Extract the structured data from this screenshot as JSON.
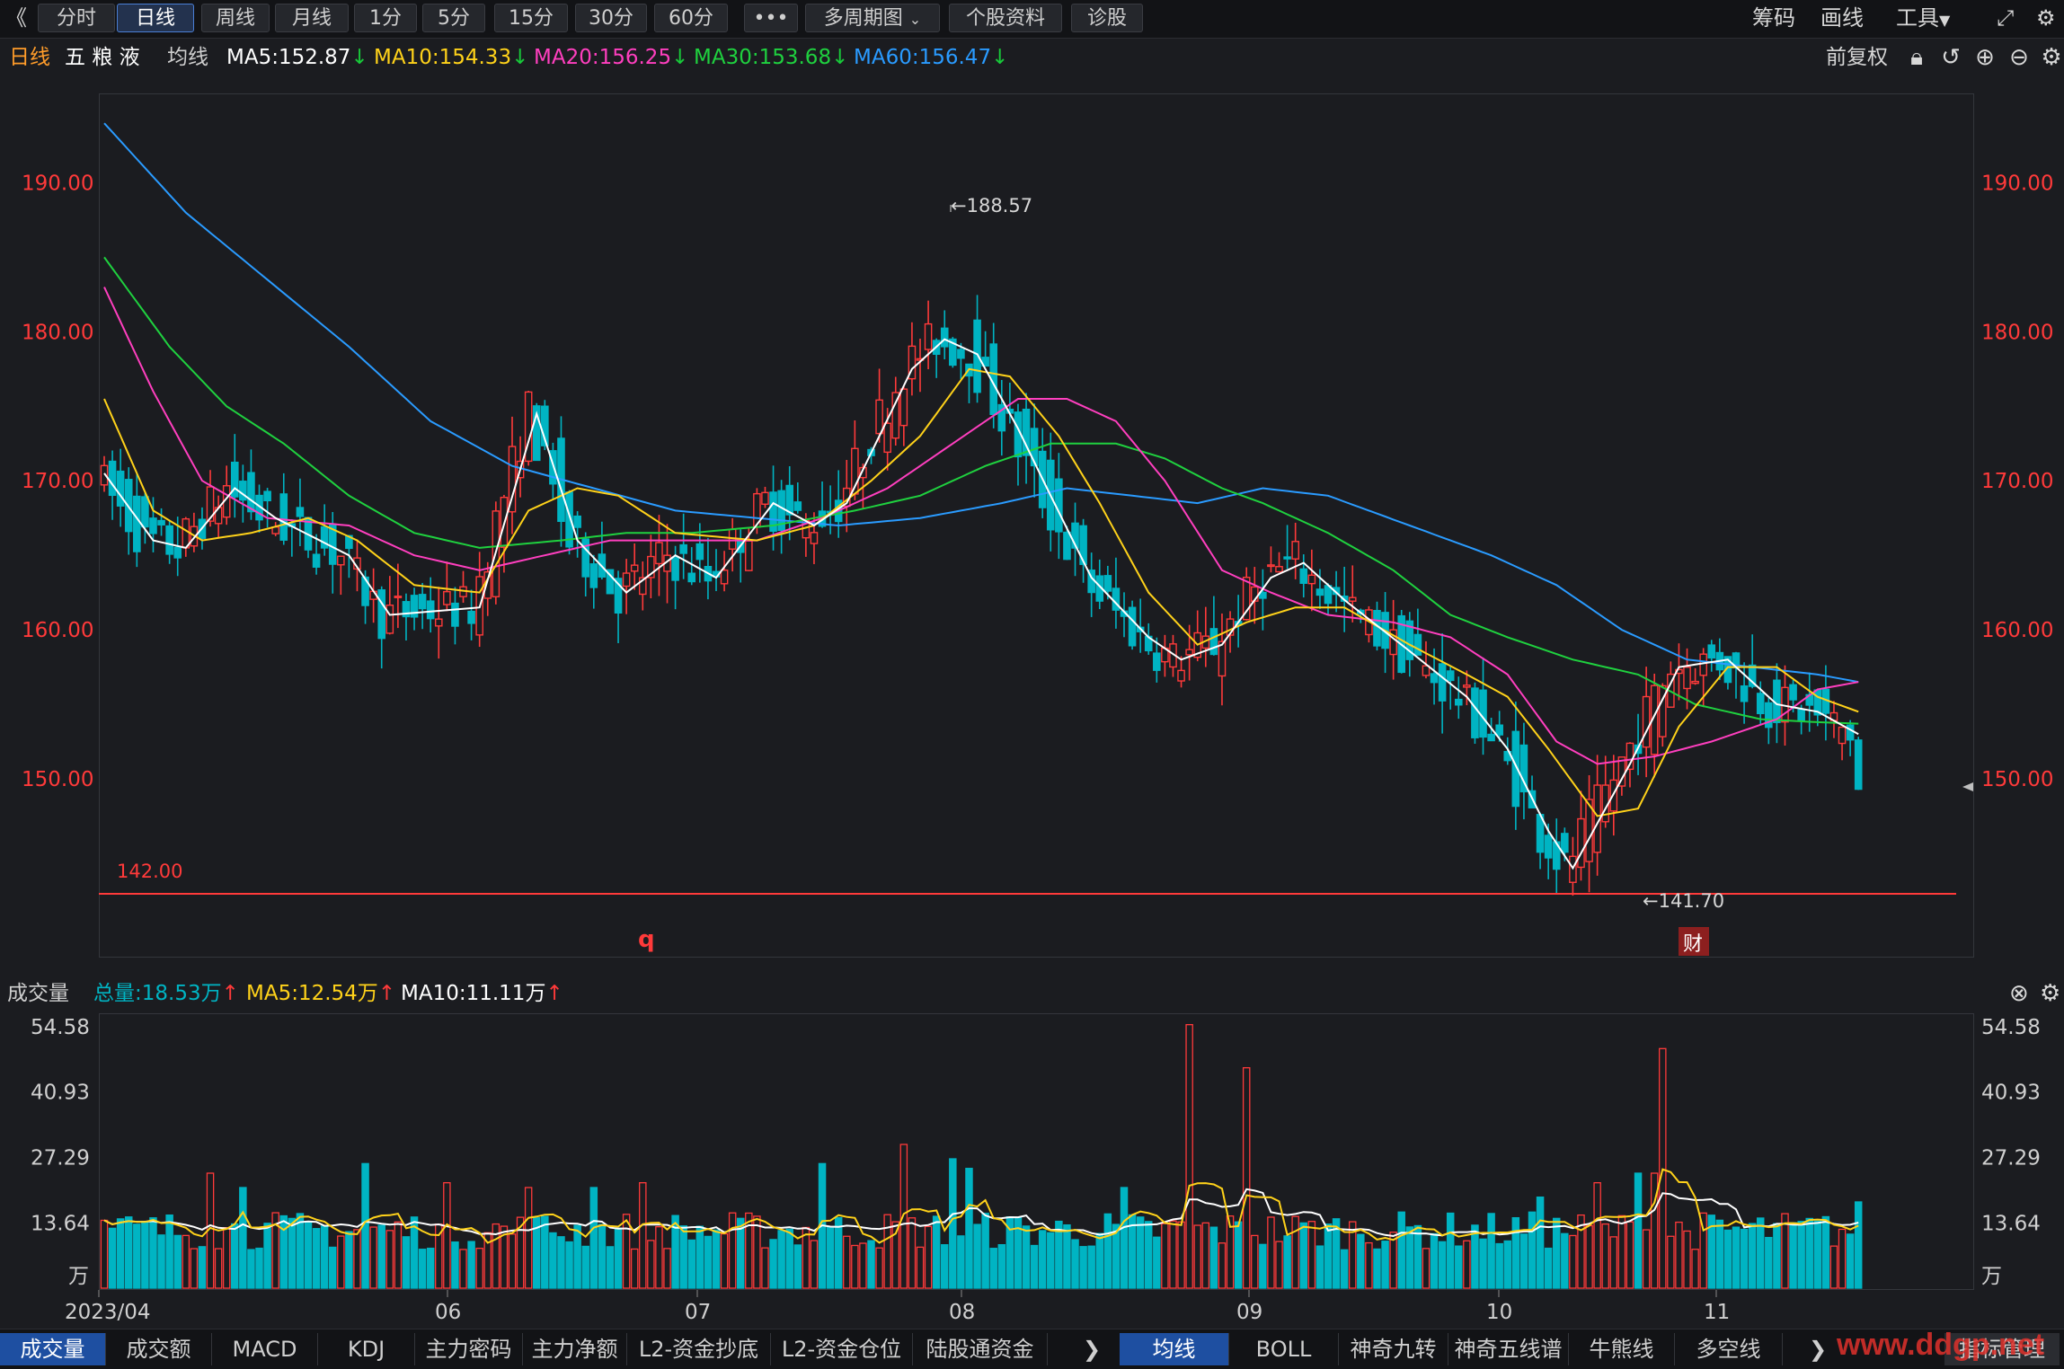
{
  "toolbar": {
    "back": "《",
    "periods": [
      "分时",
      "日线",
      "周线",
      "月线",
      "1分",
      "5分",
      "15分",
      "30分",
      "60分"
    ],
    "active_period": "日线",
    "more": "•••",
    "multi_period": "多周期图",
    "stock_info": "个股资料",
    "diagnose": "诊股",
    "chips": "筹码",
    "draw": "画线",
    "tools": "工具"
  },
  "info": {
    "period": "日线",
    "stock_name": "五 粮 液",
    "ma_label": "均线",
    "ma5": "MA5:152.87",
    "ma10": "MA10:154.33",
    "ma20": "MA20:156.25",
    "ma30": "MA30:153.68",
    "ma60": "MA60:156.47",
    "adjust": "前复权"
  },
  "colors": {
    "up": "#ff3a3a",
    "down": "#00b4c3",
    "ma5": "#ffffff",
    "ma10": "#ffd21a",
    "ma20": "#ff3fbf",
    "ma30": "#1fd13f",
    "ma60": "#2a9bff"
  },
  "main_chart": {
    "y_ticks": [
      "190.00",
      "180.00",
      "170.00",
      "160.00",
      "150.00"
    ],
    "high_label": "←188.57",
    "low_label": "←141.70",
    "support_label": "142.00",
    "marker_q": "q",
    "marker_cai": "财"
  },
  "volume": {
    "title": "成交量",
    "total": "总量:18.53万",
    "ma5": "MA5:12.54万",
    "ma10": "MA10:11.11万",
    "y_ticks": [
      "54.58",
      "40.93",
      "27.29",
      "13.64"
    ],
    "unit": "万"
  },
  "x_axis": [
    "2023/04",
    "06",
    "07",
    "08",
    "09",
    "10",
    "11"
  ],
  "bottom_tabs_left": [
    "成交量",
    "成交额",
    "MACD",
    "KDJ",
    "主力密码",
    "主力净额",
    "L2-资金抄底",
    "L2-资金仓位",
    "陆股通资金"
  ],
  "bottom_tabs_right": [
    "均线",
    "BOLL",
    "神奇九转",
    "神奇五线谱",
    "牛熊线",
    "多空线"
  ],
  "bottom_tab_last": "指标管理",
  "watermark": "www.ddgp.net",
  "chart_data": {
    "type": "candlestick",
    "y_range": [
      138,
      196
    ],
    "vol_range": [
      0,
      57
    ],
    "ma_keypoints": {
      "ma5": [
        [
          0,
          170.5
        ],
        [
          6,
          166
        ],
        [
          10,
          165.5
        ],
        [
          16,
          169.5
        ],
        [
          21,
          167.5
        ],
        [
          30,
          165
        ],
        [
          35,
          161
        ],
        [
          46,
          161.5
        ],
        [
          53,
          174.5
        ],
        [
          58,
          166
        ],
        [
          64,
          162.5
        ],
        [
          70,
          165
        ],
        [
          75,
          163.5
        ],
        [
          82,
          168.5
        ],
        [
          87,
          167
        ],
        [
          91,
          168.5
        ],
        [
          99,
          177.5
        ],
        [
          103,
          179.5
        ],
        [
          107,
          178.5
        ],
        [
          112,
          173.5
        ],
        [
          116,
          169
        ],
        [
          121,
          163.5
        ],
        [
          128,
          159.5
        ],
        [
          132,
          158
        ],
        [
          137,
          159
        ],
        [
          143,
          163.5
        ],
        [
          147,
          164.5
        ],
        [
          152,
          162
        ],
        [
          159,
          159
        ],
        [
          167,
          155.5
        ],
        [
          172,
          152
        ],
        [
          177,
          146.5
        ],
        [
          180,
          144
        ],
        [
          187,
          151
        ],
        [
          193,
          157.5
        ],
        [
          199,
          158
        ],
        [
          205,
          155
        ],
        [
          210,
          154.5
        ],
        [
          215,
          153
        ]
      ],
      "ma10": [
        [
          0,
          175.5
        ],
        [
          6,
          168
        ],
        [
          12,
          166
        ],
        [
          18,
          166.5
        ],
        [
          25,
          167.5
        ],
        [
          31,
          166
        ],
        [
          38,
          163
        ],
        [
          46,
          162.5
        ],
        [
          52,
          168
        ],
        [
          58,
          169.5
        ],
        [
          63,
          169
        ],
        [
          70,
          166.5
        ],
        [
          80,
          166
        ],
        [
          87,
          167
        ],
        [
          94,
          170
        ],
        [
          100,
          173
        ],
        [
          106,
          177.5
        ],
        [
          111,
          177
        ],
        [
          117,
          173
        ],
        [
          122,
          168.5
        ],
        [
          128,
          162.5
        ],
        [
          134,
          159
        ],
        [
          140,
          160.5
        ],
        [
          146,
          161.5
        ],
        [
          152,
          161.5
        ],
        [
          160,
          159
        ],
        [
          167,
          157
        ],
        [
          172,
          155.5
        ],
        [
          177,
          152
        ],
        [
          183,
          147.5
        ],
        [
          188,
          148
        ],
        [
          193,
          153.5
        ],
        [
          199,
          157.5
        ],
        [
          205,
          157.5
        ],
        [
          210,
          155.5
        ],
        [
          215,
          154.5
        ]
      ],
      "ma20": [
        [
          0,
          183
        ],
        [
          6,
          176
        ],
        [
          12,
          170
        ],
        [
          20,
          167.5
        ],
        [
          30,
          167
        ],
        [
          38,
          165
        ],
        [
          46,
          164
        ],
        [
          54,
          165
        ],
        [
          62,
          166
        ],
        [
          70,
          166
        ],
        [
          80,
          166
        ],
        [
          88,
          167.5
        ],
        [
          96,
          169.5
        ],
        [
          104,
          172.5
        ],
        [
          112,
          175.5
        ],
        [
          118,
          175.5
        ],
        [
          124,
          174
        ],
        [
          130,
          170
        ],
        [
          137,
          164
        ],
        [
          143,
          162.5
        ],
        [
          150,
          161
        ],
        [
          158,
          160.5
        ],
        [
          165,
          159.5
        ],
        [
          172,
          157
        ],
        [
          178,
          152.5
        ],
        [
          183,
          151
        ],
        [
          190,
          151.5
        ],
        [
          197,
          152.5
        ],
        [
          205,
          154
        ],
        [
          210,
          156
        ],
        [
          215,
          156.5
        ]
      ],
      "ma30": [
        [
          0,
          185
        ],
        [
          8,
          179
        ],
        [
          15,
          175
        ],
        [
          22,
          172.5
        ],
        [
          30,
          169
        ],
        [
          38,
          166.5
        ],
        [
          46,
          165.5
        ],
        [
          56,
          166
        ],
        [
          64,
          166.5
        ],
        [
          72,
          166.5
        ],
        [
          82,
          167
        ],
        [
          92,
          168
        ],
        [
          100,
          169
        ],
        [
          108,
          171
        ],
        [
          116,
          172.5
        ],
        [
          124,
          172.5
        ],
        [
          130,
          171.5
        ],
        [
          137,
          169.5
        ],
        [
          142,
          168.5
        ],
        [
          150,
          166.5
        ],
        [
          158,
          164
        ],
        [
          165,
          161
        ],
        [
          172,
          159.5
        ],
        [
          180,
          158
        ],
        [
          188,
          157
        ],
        [
          195,
          155
        ],
        [
          203,
          154
        ],
        [
          210,
          153.8
        ],
        [
          215,
          153.7
        ]
      ],
      "ma60": [
        [
          0,
          194
        ],
        [
          10,
          188
        ],
        [
          20,
          183.5
        ],
        [
          30,
          179
        ],
        [
          40,
          174
        ],
        [
          50,
          171
        ],
        [
          60,
          169.5
        ],
        [
          70,
          168
        ],
        [
          80,
          167.5
        ],
        [
          90,
          167
        ],
        [
          100,
          167.5
        ],
        [
          110,
          168.5
        ],
        [
          118,
          169.5
        ],
        [
          126,
          169
        ],
        [
          134,
          168.5
        ],
        [
          142,
          169.5
        ],
        [
          150,
          169
        ],
        [
          160,
          167
        ],
        [
          170,
          165
        ],
        [
          178,
          163
        ],
        [
          186,
          160
        ],
        [
          194,
          158
        ],
        [
          202,
          157.5
        ],
        [
          210,
          157
        ],
        [
          215,
          156.5
        ]
      ]
    }
  }
}
